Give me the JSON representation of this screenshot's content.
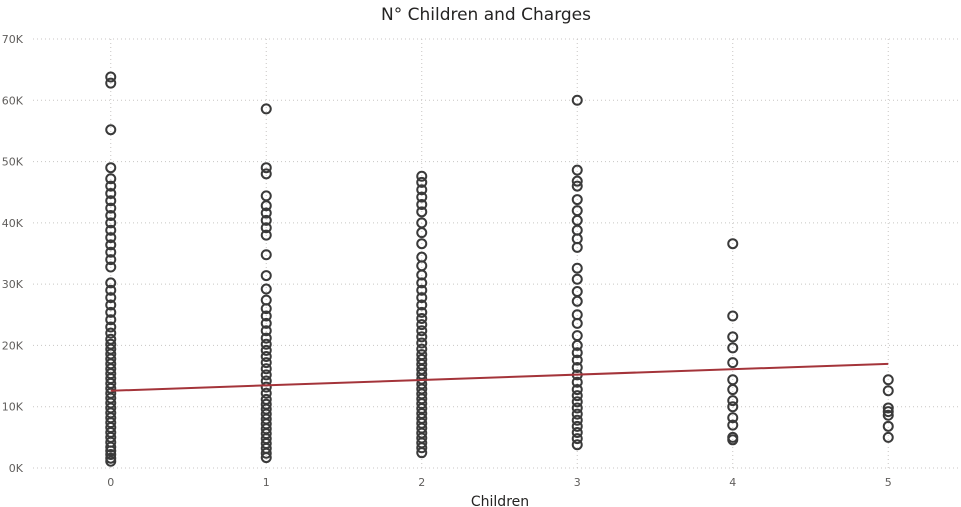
{
  "chart_data": {
    "type": "scatter",
    "title": "N° Children and Charges",
    "xlabel": "Children",
    "ylabel": "",
    "x_ticks": [
      "0",
      "1",
      "2",
      "3",
      "4",
      "5"
    ],
    "y_ticks": [
      "0K",
      "10K",
      "20K",
      "30K",
      "40K",
      "50K",
      "60K",
      "70K"
    ],
    "xlim": [
      -0.5,
      5.5
    ],
    "ylim": [
      0,
      70000
    ],
    "grid": true,
    "colors": {
      "points": "#3a3a3a",
      "trend": "#a4343a"
    },
    "series": [
      {
        "x": 0,
        "y": [
          1100,
          1600,
          2200,
          2800,
          3400,
          4200,
          5000,
          5800,
          6600,
          7400,
          8200,
          9000,
          9800,
          10600,
          11400,
          12200,
          13000,
          13800,
          14600,
          15400,
          16200,
          17000,
          17800,
          18600,
          19400,
          20200,
          21000,
          22000,
          23000,
          24200,
          25400,
          26600,
          27800,
          29000,
          30200,
          32800,
          34000,
          35200,
          36400,
          37600,
          38800,
          40000,
          41200,
          42400,
          43600,
          44800,
          46000,
          47200,
          49000,
          55200,
          62800,
          63800
        ]
      },
      {
        "x": 1,
        "y": [
          1700,
          2400,
          3200,
          4000,
          4800,
          5600,
          6400,
          7200,
          8000,
          8800,
          9600,
          10400,
          11200,
          12200,
          13200,
          14200,
          15200,
          16200,
          17200,
          18200,
          19200,
          20200,
          21200,
          22400,
          23600,
          24800,
          26000,
          27400,
          29200,
          31400,
          34800,
          38000,
          39200,
          40400,
          41600,
          42800,
          44400,
          48000,
          49000,
          58600
        ]
      },
      {
        "x": 2,
        "y": [
          2500,
          3300,
          4100,
          4900,
          5700,
          6500,
          7300,
          8100,
          8900,
          9700,
          10500,
          11300,
          12100,
          12900,
          13700,
          14500,
          15300,
          16100,
          16900,
          17700,
          18500,
          19400,
          20400,
          21400,
          22400,
          23400,
          24400,
          25400,
          26600,
          27800,
          29000,
          30200,
          31500,
          33000,
          34400,
          36600,
          38400,
          40000,
          41800,
          43000,
          44200,
          45400,
          46600,
          47600
        ]
      },
      {
        "x": 3,
        "y": [
          3800,
          4800,
          5800,
          6800,
          7800,
          8800,
          9800,
          10800,
          11800,
          12800,
          14000,
          15200,
          16400,
          17600,
          18800,
          20000,
          21600,
          23600,
          25000,
          27200,
          28800,
          30800,
          32600,
          36000,
          37400,
          38800,
          40400,
          42000,
          43800,
          46000,
          46800,
          48600,
          60000
        ]
      },
      {
        "x": 4,
        "y": [
          4600,
          5000,
          7000,
          8200,
          10000,
          11000,
          12800,
          14400,
          17200,
          19600,
          21400,
          24800,
          36600
        ]
      },
      {
        "x": 5,
        "y": [
          5000,
          6800,
          8600,
          9200,
          9800,
          12600,
          14400
        ]
      }
    ],
    "trendline": {
      "x": [
        0,
        5
      ],
      "y": [
        12600,
        17000
      ]
    }
  }
}
